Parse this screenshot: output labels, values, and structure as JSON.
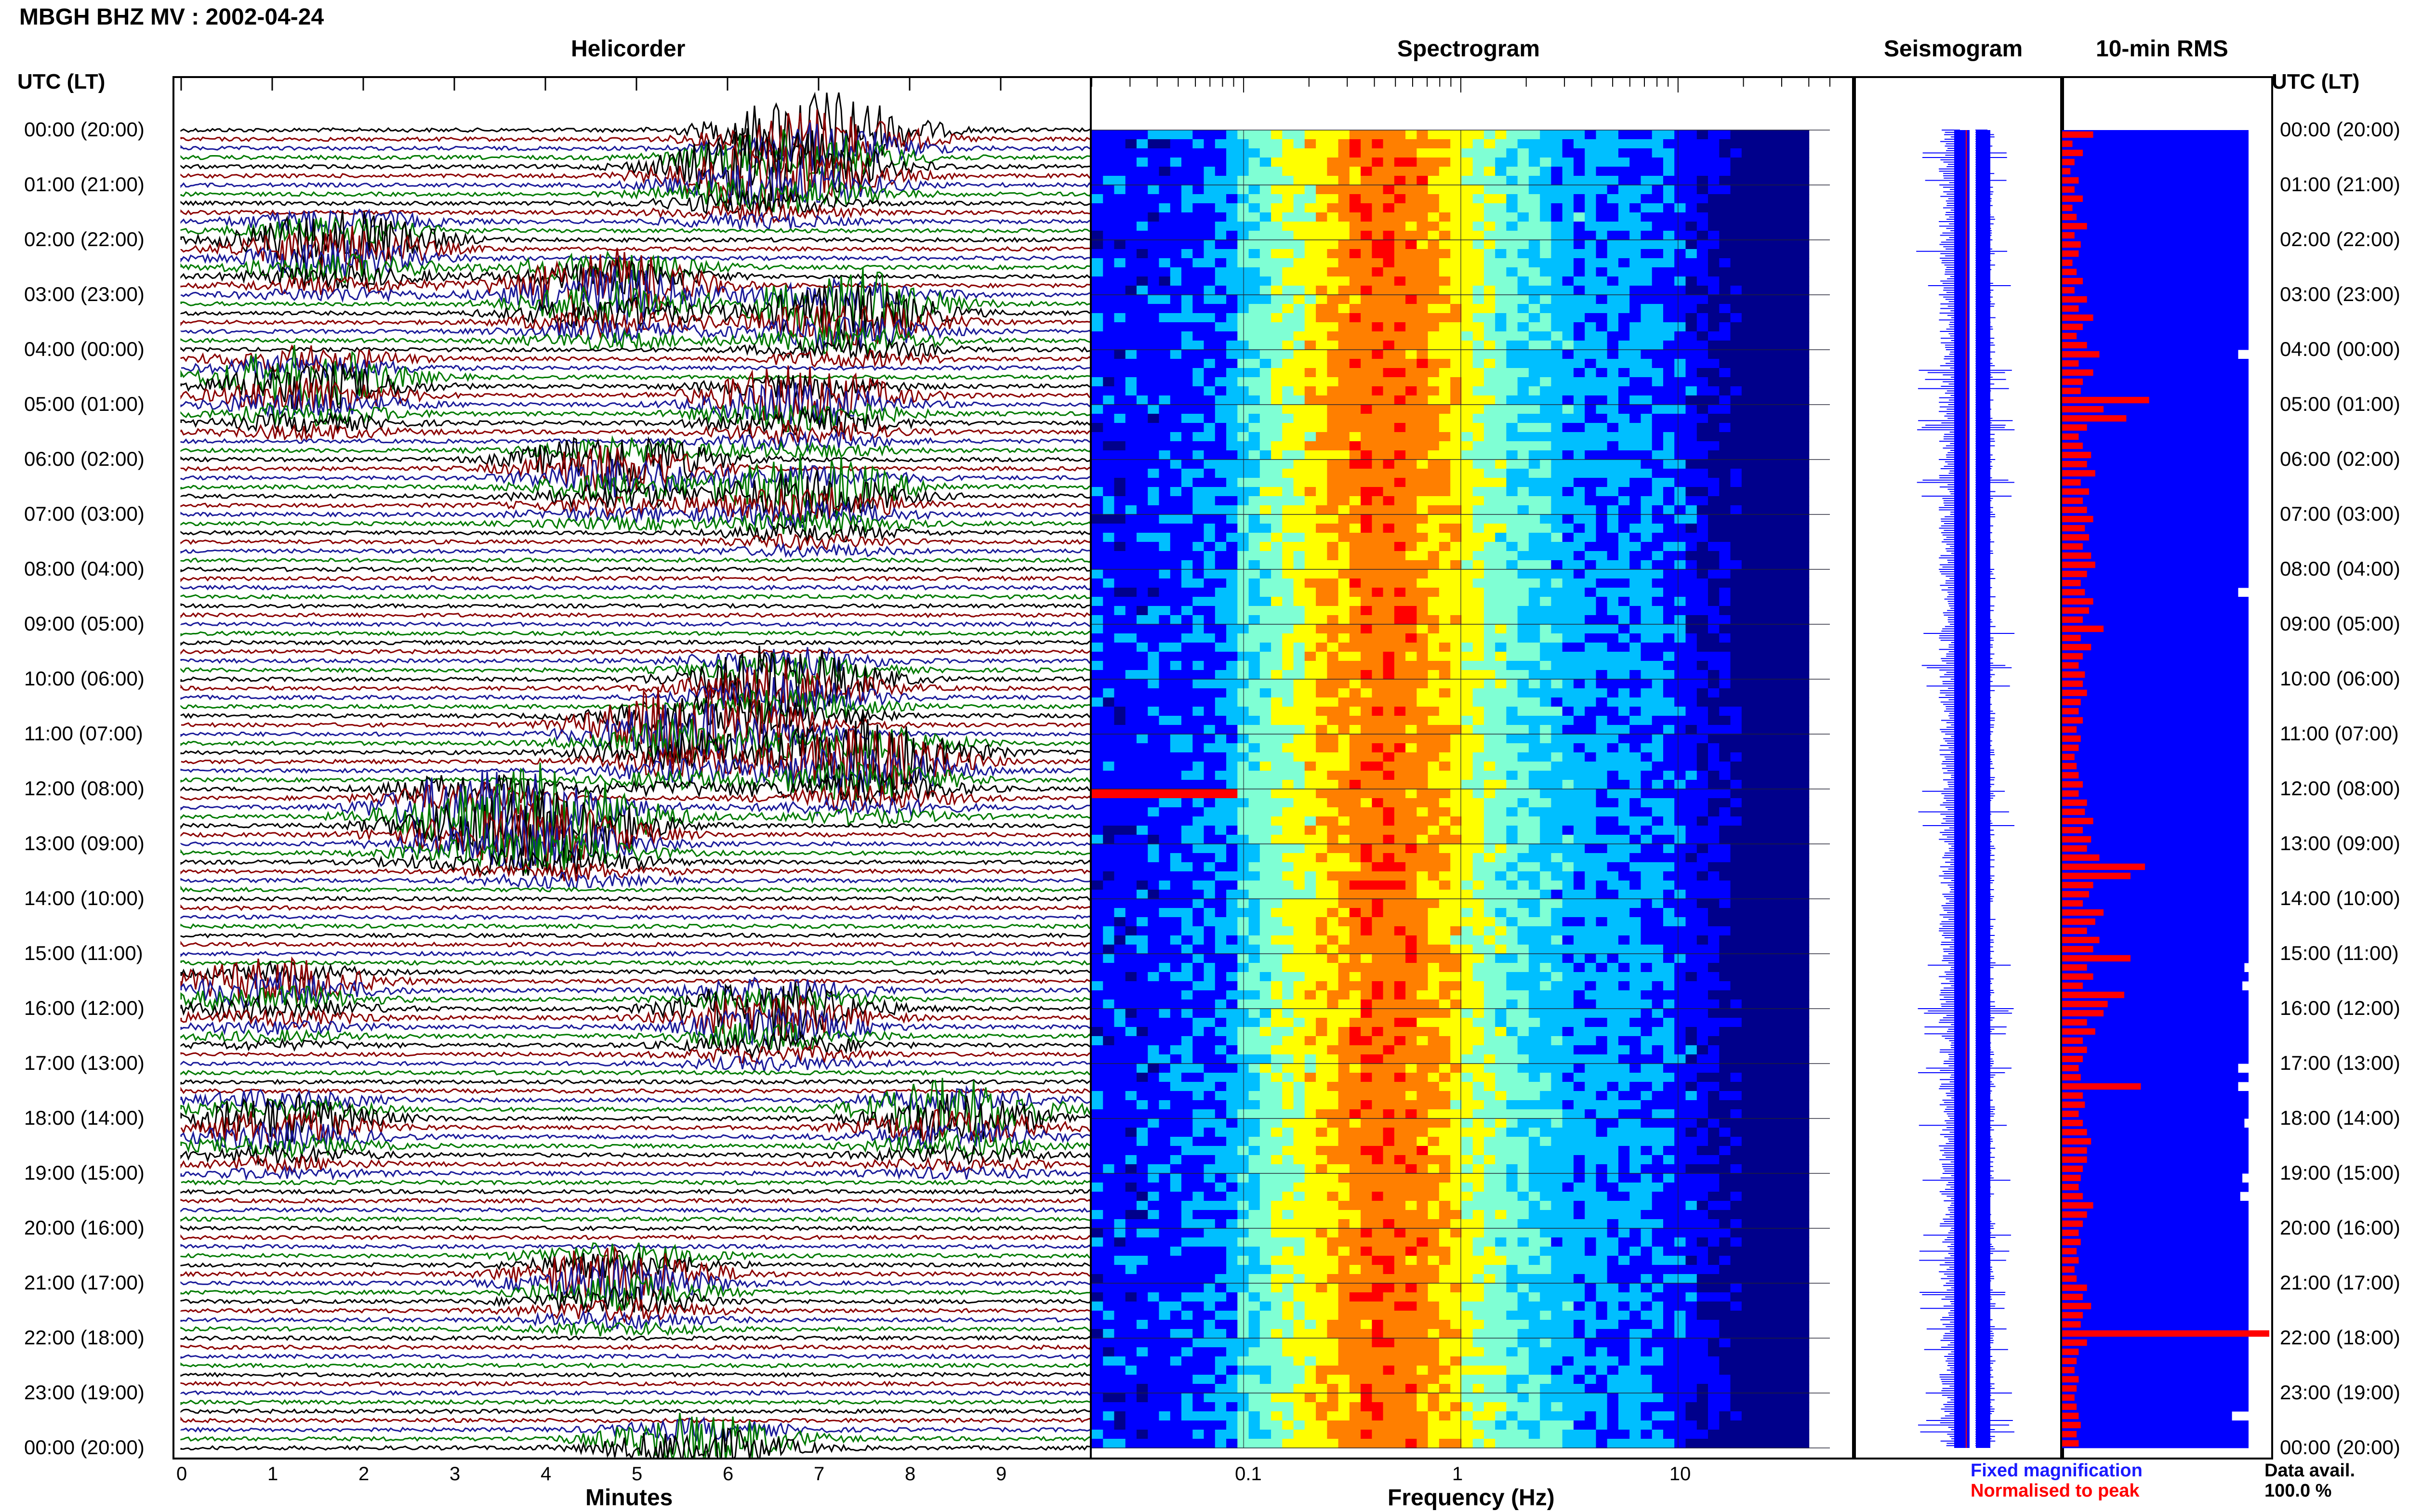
{
  "header": {
    "title": "MBGH BHZ MV : 2002-04-24"
  },
  "panels": {
    "helicorder": "Helicorder",
    "spectrogram": "Spectrogram",
    "seismogram": "Seismogram",
    "rms": "10-min RMS"
  },
  "axis": {
    "time_label_left": "UTC (LT)",
    "time_label_right": "UTC (LT)",
    "minutes_label": "Minutes",
    "frequency_label": "Frequency (Hz)"
  },
  "legend": {
    "fixed": "Fixed magnification",
    "normalised": "Normalised to peak",
    "fixed_color": "#1a1aff",
    "normalised_color": "#ff0000"
  },
  "availability": {
    "label": "Data avail.",
    "value": "100.0 %"
  },
  "colors": {
    "trace_cycle": [
      "#000000",
      "#8b0000",
      "#1a1a99",
      "#007a00"
    ],
    "rms_fill": "#0000ff",
    "rms_bar": "#ff0000",
    "seismo_trace": "#0000ff"
  },
  "chart_data": [
    {
      "type": "heatmap",
      "title": "Helicorder",
      "xlabel": "Minutes",
      "ylabel": "UTC (LT)",
      "xlim": [
        0,
        10
      ],
      "x_ticks": [
        "0",
        "1",
        "2",
        "3",
        "4",
        "5",
        "6",
        "7",
        "8",
        "9"
      ],
      "y_ticks": [
        "00:00 (20:00)",
        "01:00 (21:00)",
        "02:00 (22:00)",
        "03:00 (23:00)",
        "04:00 (00:00)",
        "05:00 (01:00)",
        "06:00 (02:00)",
        "07:00 (03:00)",
        "08:00 (04:00)",
        "09:00 (05:00)",
        "10:00 (06:00)",
        "11:00 (07:00)",
        "12:00 (08:00)",
        "13:00 (09:00)",
        "14:00 (10:00)",
        "15:00 (11:00)",
        "16:00 (12:00)",
        "17:00 (13:00)",
        "18:00 (14:00)",
        "19:00 (15:00)",
        "20:00 (16:00)",
        "21:00 (17:00)",
        "22:00 (18:00)",
        "23:00 (19:00)",
        "00:00 (20:00)"
      ],
      "events": [
        {
          "time_h": 0.0,
          "minute": 7.0,
          "amp": 0.9
        },
        {
          "time_h": 0.6,
          "minute": 6.3,
          "amp": 0.8
        },
        {
          "time_h": 1.9,
          "minute": 1.7,
          "amp": 0.8
        },
        {
          "time_h": 2.7,
          "minute": 4.7,
          "amp": 1.0
        },
        {
          "time_h": 3.1,
          "minute": 7.3,
          "amp": 0.9
        },
        {
          "time_h": 4.4,
          "minute": 1.4,
          "amp": 0.8
        },
        {
          "time_h": 4.8,
          "minute": 6.8,
          "amp": 0.7
        },
        {
          "time_h": 6.0,
          "minute": 4.8,
          "amp": 0.7
        },
        {
          "time_h": 6.5,
          "minute": 6.9,
          "amp": 0.7
        },
        {
          "time_h": 9.9,
          "minute": 6.6,
          "amp": 0.9
        },
        {
          "time_h": 10.8,
          "minute": 5.5,
          "amp": 0.9
        },
        {
          "time_h": 11.3,
          "minute": 7.5,
          "amp": 1.0
        },
        {
          "time_h": 12.2,
          "minute": 3.2,
          "amp": 0.9
        },
        {
          "time_h": 12.5,
          "minute": 4.2,
          "amp": 0.9
        },
        {
          "time_h": 15.5,
          "minute": 1.0,
          "amp": 0.5
        },
        {
          "time_h": 15.9,
          "minute": 6.5,
          "amp": 0.8
        },
        {
          "time_h": 17.9,
          "minute": 1.1,
          "amp": 0.6
        },
        {
          "time_h": 17.8,
          "minute": 8.5,
          "amp": 0.7
        },
        {
          "time_h": 20.7,
          "minute": 4.8,
          "amp": 0.8
        },
        {
          "time_h": 23.8,
          "minute": 5.7,
          "amp": 0.6
        }
      ]
    },
    {
      "type": "heatmap",
      "title": "Spectrogram",
      "xlabel": "Frequency (Hz)",
      "x_scale": "log",
      "xlim": [
        0.02,
        50
      ],
      "x_ticks": [
        "0.1",
        "1",
        "10"
      ],
      "colormap": [
        "#00008b",
        "#0000ff",
        "#00bfff",
        "#7fffd4",
        "#ffff00",
        "#ff7f00",
        "#ff0000"
      ],
      "notes_visible": "energy concentrated between 0.2 and 2 Hz; strong narrow-band event near 0.07 Hz at ~12:00 UTC"
    },
    {
      "type": "bar",
      "title": "10-min RMS",
      "orientation": "horizontal",
      "rows": 144,
      "fixed_magnification": [
        0.9,
        0.9,
        0.9,
        0.9,
        0.9,
        0.9,
        0.9,
        0.9,
        0.9,
        0.9,
        0.9,
        0.9,
        0.9,
        0.9,
        0.9,
        0.9,
        0.9,
        0.9,
        0.9,
        0.9,
        0.9,
        0.9,
        0.9,
        0.9,
        0.85,
        0.9,
        0.9,
        0.9,
        0.9,
        0.9,
        0.9,
        0.9,
        0.9,
        0.9,
        0.9,
        0.9,
        0.9,
        0.9,
        0.9,
        0.9,
        0.9,
        0.9,
        0.9,
        0.9,
        0.9,
        0.9,
        0.9,
        0.9,
        0.9,
        0.9,
        0.85,
        0.9,
        0.9,
        0.9,
        0.9,
        0.9,
        0.9,
        0.9,
        0.9,
        0.9,
        0.9,
        0.9,
        0.9,
        0.9,
        0.9,
        0.9,
        0.9,
        0.9,
        0.9,
        0.9,
        0.9,
        0.9,
        0.9,
        0.9,
        0.9,
        0.9,
        0.9,
        0.9,
        0.9,
        0.9,
        0.9,
        0.9,
        0.9,
        0.9,
        0.9,
        0.9,
        0.9,
        0.9,
        0.9,
        0.9,
        0.9,
        0.88,
        0.9,
        0.87,
        0.9,
        0.9,
        0.9,
        0.9,
        0.9,
        0.9,
        0.9,
        0.9,
        0.85,
        0.9,
        0.85,
        0.9,
        0.9,
        0.9,
        0.88,
        0.9,
        0.9,
        0.9,
        0.9,
        0.9,
        0.87,
        0.9,
        0.86,
        0.9,
        0.9,
        0.9,
        0.9,
        0.9,
        0.9,
        0.9,
        0.9,
        0.9,
        0.9,
        0.9,
        0.9,
        0.9,
        0.9,
        0.9,
        0.9,
        0.9,
        0.9,
        0.9,
        0.9,
        0.9,
        0.9,
        0.9,
        0.82,
        0.9,
        0.9,
        0.9
      ],
      "normalised_to_peak": [
        0.15,
        0.05,
        0.1,
        0.06,
        0.04,
        0.08,
        0.06,
        0.1,
        0.05,
        0.07,
        0.12,
        0.06,
        0.09,
        0.08,
        0.05,
        0.07,
        0.1,
        0.06,
        0.12,
        0.08,
        0.15,
        0.1,
        0.07,
        0.12,
        0.18,
        0.08,
        0.15,
        0.1,
        0.09,
        0.42,
        0.2,
        0.31,
        0.12,
        0.08,
        0.1,
        0.14,
        0.12,
        0.16,
        0.09,
        0.13,
        0.1,
        0.12,
        0.15,
        0.11,
        0.13,
        0.1,
        0.14,
        0.16,
        0.12,
        0.09,
        0.11,
        0.15,
        0.13,
        0.1,
        0.2,
        0.09,
        0.14,
        0.1,
        0.08,
        0.11,
        0.1,
        0.12,
        0.09,
        0.08,
        0.1,
        0.07,
        0.09,
        0.08,
        0.06,
        0.07,
        0.08,
        0.1,
        0.08,
        0.12,
        0.11,
        0.15,
        0.1,
        0.14,
        0.12,
        0.18,
        0.4,
        0.33,
        0.15,
        0.13,
        0.1,
        0.2,
        0.16,
        0.12,
        0.18,
        0.15,
        0.33,
        0.12,
        0.15,
        0.1,
        0.3,
        0.22,
        0.2,
        0.12,
        0.16,
        0.1,
        0.12,
        0.1,
        0.08,
        0.09,
        0.38,
        0.1,
        0.11,
        0.08,
        0.1,
        0.12,
        0.14,
        0.12,
        0.12,
        0.1,
        0.09,
        0.08,
        0.1,
        0.15,
        0.12,
        0.1,
        0.08,
        0.09,
        0.07,
        0.08,
        0.06,
        0.07,
        0.12,
        0.1,
        0.14,
        0.1,
        0.09,
        1.0,
        0.12,
        0.08,
        0.07,
        0.06,
        0.08,
        0.07,
        0.06,
        0.07,
        0.08,
        0.09,
        0.07,
        0.08
      ]
    }
  ]
}
